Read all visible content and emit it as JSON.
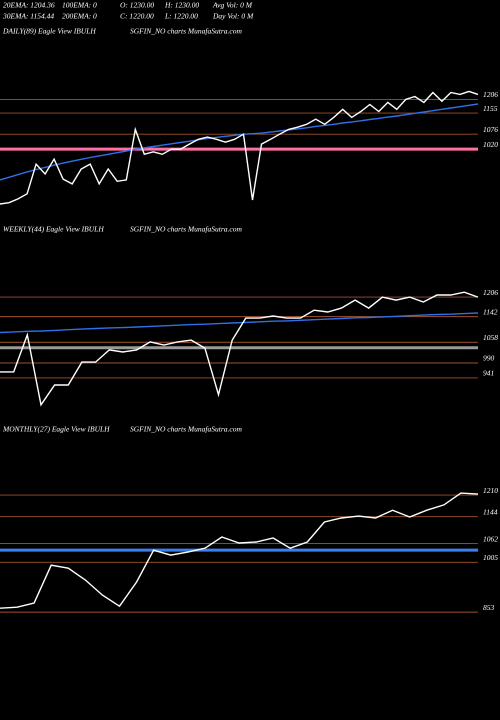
{
  "header": {
    "stats": [
      [
        "20EMA: 1204.36",
        "100EMA: 0",
        "O: 1230.00",
        "H: 1230.00",
        "Avg Vol: 0  M"
      ],
      [
        "30EMA: 1154.44",
        "200EMA: 0",
        "C: 1220.00",
        "L: 1220.00",
        "Day Vol: 0  M"
      ]
    ]
  },
  "chart_data": [
    {
      "type": "line",
      "title": "DAILY(89) Eagle  View  IBULH",
      "subtitle": "SGFIN_NO charts MunafaSutra.com",
      "ylim": [
        800,
        1260
      ],
      "yticks": [
        1206,
        1155,
        1076,
        1020
      ],
      "reference_lines": [
        {
          "value": 1020,
          "color": "#ff6fa8"
        }
      ],
      "series": [
        {
          "color": "#2f6fe8",
          "values": [
            905,
            915,
            925,
            935,
            944,
            952,
            960,
            968,
            975,
            982,
            989,
            995,
            1001,
            1007,
            1013,
            1020,
            1025,
            1030,
            1035,
            1040,
            1045,
            1050,
            1055,
            1060,
            1064,
            1068,
            1072,
            1076,
            1078,
            1080,
            1084,
            1088,
            1092,
            1096,
            1100,
            1105,
            1109,
            1113,
            1118,
            1122,
            1126,
            1131,
            1135,
            1140,
            1144,
            1149,
            1154,
            1159,
            1164,
            1169,
            1174,
            1179,
            1184,
            1189
          ]
        },
        {
          "color": "#ffffff",
          "values": [
            815,
            820,
            834,
            853,
            964,
            927,
            983,
            908,
            890,
            946,
            964,
            890,
            946,
            900,
            905,
            1094,
            1001,
            1010,
            1001,
            1020,
            1020,
            1039,
            1057,
            1065,
            1057,
            1046,
            1057,
            1076,
            830,
            1039,
            1057,
            1076,
            1094,
            1102,
            1113,
            1132,
            1113,
            1139,
            1169,
            1139,
            1161,
            1187,
            1161,
            1195,
            1169,
            1206,
            1217,
            1195,
            1232,
            1199,
            1232,
            1225,
            1236,
            1225
          ]
        }
      ]
    },
    {
      "type": "line",
      "title": "WEEKLY(44) Eagle  View  IBULH",
      "subtitle": "SGFIN_NO charts MunafaSutra.com",
      "ylim": [
        836,
        1262
      ],
      "yticks": [
        1206,
        1142,
        1058,
        990,
        941
      ],
      "reference_lines": [
        {
          "value": 1040,
          "color": "#9a9a9a"
        }
      ],
      "series": [
        {
          "color": "#2f6fe8",
          "values": [
            1090,
            1092,
            1094,
            1095,
            1097,
            1099,
            1101,
            1103,
            1105,
            1106,
            1108,
            1110,
            1112,
            1114,
            1116,
            1117,
            1119,
            1121,
            1123,
            1125,
            1127,
            1128,
            1130,
            1132,
            1134,
            1136,
            1138,
            1139,
            1141,
            1143,
            1145,
            1147,
            1149,
            1150,
            1152,
            1154
          ]
        },
        {
          "color": "#ffffff",
          "values": [
            961,
            961,
            1082,
            853,
            918,
            918,
            993,
            993,
            1033,
            1026,
            1033,
            1059,
            1049,
            1059,
            1065,
            1039,
            886,
            1065,
            1137,
            1137,
            1144,
            1137,
            1137,
            1163,
            1157,
            1170,
            1196,
            1170,
            1206,
            1196,
            1206,
            1190,
            1213,
            1213,
            1222,
            1206
          ]
        }
      ]
    },
    {
      "type": "line",
      "title": "MONTHLY(27) Eagle  View  IBULH",
      "subtitle": "SGFIN_NO charts MunafaSutra.com",
      "ylim": [
        829,
        1256
      ],
      "yticks": [
        1210,
        1144,
        1062,
        1005,
        853
      ],
      "reference_lines": [
        {
          "value": 1042,
          "color": "#3a7ff0"
        }
      ],
      "series": [
        {
          "color": "#ffffff",
          "values": [
            865,
            868,
            881,
            996,
            987,
            951,
            905,
            871,
            945,
            1042,
            1027,
            1036,
            1048,
            1082,
            1064,
            1067,
            1079,
            1048,
            1067,
            1128,
            1140,
            1146,
            1140,
            1164,
            1143,
            1164,
            1180,
            1216,
            1213
          ]
        }
      ]
    }
  ]
}
